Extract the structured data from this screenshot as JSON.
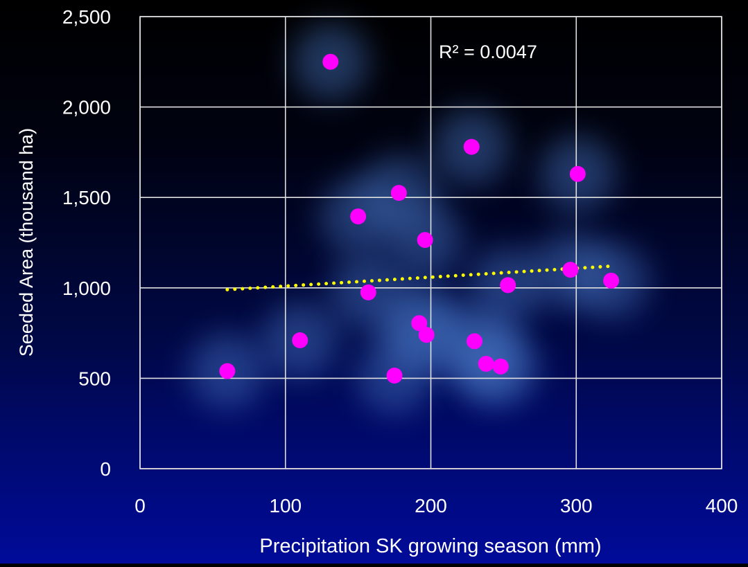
{
  "chart_data": {
    "type": "scatter",
    "xlabel": "Precipitation SK growing season (mm)",
    "ylabel": "Seeded Area (thousand ha)",
    "xlim": [
      0,
      400
    ],
    "ylim": [
      0,
      2500
    ],
    "x_ticks": [
      0,
      100,
      200,
      300,
      400
    ],
    "y_ticks": [
      0,
      500,
      1000,
      1500,
      2000,
      2500
    ],
    "x_tick_labels": [
      "0",
      "100",
      "200",
      "300",
      "400"
    ],
    "y_tick_labels": [
      "0",
      "500",
      "1,000",
      "1,500",
      "2,000",
      "2,500"
    ],
    "grid": true,
    "annotation": "R² = 0.0047",
    "points": [
      {
        "x": 60,
        "y": 540
      },
      {
        "x": 110,
        "y": 710
      },
      {
        "x": 131,
        "y": 2250
      },
      {
        "x": 150,
        "y": 1395
      },
      {
        "x": 157,
        "y": 975
      },
      {
        "x": 175,
        "y": 515
      },
      {
        "x": 178,
        "y": 1525
      },
      {
        "x": 192,
        "y": 805
      },
      {
        "x": 196,
        "y": 1265
      },
      {
        "x": 197,
        "y": 740
      },
      {
        "x": 228,
        "y": 1780
      },
      {
        "x": 230,
        "y": 705
      },
      {
        "x": 238,
        "y": 580
      },
      {
        "x": 248,
        "y": 565
      },
      {
        "x": 253,
        "y": 1015
      },
      {
        "x": 296,
        "y": 1100
      },
      {
        "x": 301,
        "y": 1630
      },
      {
        "x": 324,
        "y": 1040
      }
    ],
    "trendline": {
      "type": "linear",
      "x": [
        60,
        324
      ],
      "y": [
        990,
        1120
      ]
    },
    "colors": {
      "points": "#ff00ff",
      "trendline": "#ffff00",
      "grid": "#e0e0e0",
      "text": "#ffffff",
      "glow": "#4a78c8"
    }
  }
}
